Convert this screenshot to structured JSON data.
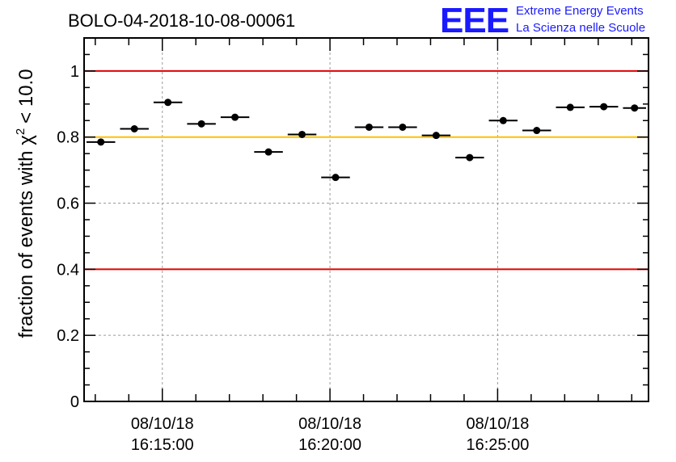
{
  "chart_data": {
    "type": "scatter",
    "title": "BOLO-04-2018-10-08-00061",
    "ylabel": "fraction of events with",
    "ylabel_symbol": "χ",
    "ylabel_superscript": "2",
    "ylabel_tail": "< 10.0",
    "xlabel": "",
    "ylim": [
      0,
      1.1
    ],
    "yticks": [
      {
        "value": 0,
        "label": "0"
      },
      {
        "value": 0.2,
        "label": "0.2"
      },
      {
        "value": 0.4,
        "label": "0.4"
      },
      {
        "value": 0.6,
        "label": "0.6"
      },
      {
        "value": 0.8,
        "label": "0.8"
      },
      {
        "value": 1,
        "label": "1"
      }
    ],
    "xlim": [
      "16:12:40",
      "16:29:30"
    ],
    "xticks": [
      {
        "time": "16:15:00",
        "date_label": "08/10/18",
        "time_label": "16:15:00"
      },
      {
        "time": "16:20:00",
        "date_label": "08/10/18",
        "time_label": "16:20:00"
      },
      {
        "time": "16:25:00",
        "date_label": "08/10/18",
        "time_label": "16:25:00"
      }
    ],
    "grid": true,
    "reference_lines": [
      {
        "y": 1.0,
        "color": "#e00000"
      },
      {
        "y": 0.8,
        "color": "#ffc000"
      },
      {
        "y": 0.4,
        "color": "#e00000"
      }
    ],
    "points": [
      {
        "start": "16:12:40",
        "end": "16:13:40",
        "y": 0.785
      },
      {
        "start": "16:13:40",
        "end": "16:14:40",
        "y": 0.825
      },
      {
        "start": "16:14:40",
        "end": "16:15:40",
        "y": 0.905
      },
      {
        "start": "16:15:40",
        "end": "16:16:40",
        "y": 0.84
      },
      {
        "start": "16:16:40",
        "end": "16:17:40",
        "y": 0.86
      },
      {
        "start": "16:17:40",
        "end": "16:18:40",
        "y": 0.755
      },
      {
        "start": "16:18:40",
        "end": "16:19:40",
        "y": 0.808
      },
      {
        "start": "16:19:40",
        "end": "16:20:40",
        "y": 0.678
      },
      {
        "start": "16:20:40",
        "end": "16:21:40",
        "y": 0.83
      },
      {
        "start": "16:21:40",
        "end": "16:22:40",
        "y": 0.83
      },
      {
        "start": "16:22:40",
        "end": "16:23:40",
        "y": 0.805
      },
      {
        "start": "16:23:40",
        "end": "16:24:40",
        "y": 0.738
      },
      {
        "start": "16:24:40",
        "end": "16:25:40",
        "y": 0.85
      },
      {
        "start": "16:25:40",
        "end": "16:26:40",
        "y": 0.82
      },
      {
        "start": "16:26:40",
        "end": "16:27:40",
        "y": 0.89
      },
      {
        "start": "16:27:40",
        "end": "16:28:40",
        "y": 0.892
      },
      {
        "start": "16:28:40",
        "end": "16:29:30",
        "y": 0.888
      }
    ]
  },
  "logo": {
    "mark": "EEE",
    "line1": "Extreme Energy Events",
    "line2": "La Scienza nelle Scuole",
    "color": "#1a1aff"
  }
}
